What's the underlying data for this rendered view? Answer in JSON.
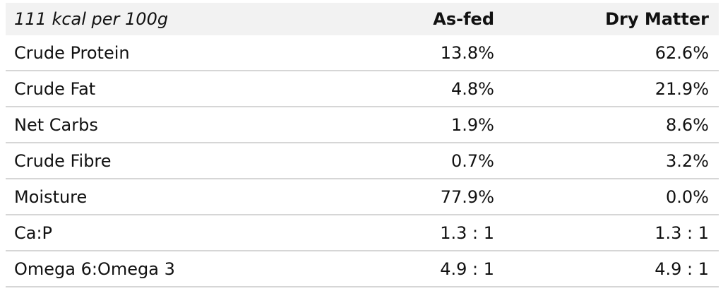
{
  "header": {
    "energy": "111 kcal per 100g",
    "as_fed": "As-fed",
    "dry_matter": "Dry Matter"
  },
  "rows": [
    {
      "label": "Crude Protein",
      "as_fed": "13.8%",
      "dry_matter": "62.6%"
    },
    {
      "label": "Crude Fat",
      "as_fed": "4.8%",
      "dry_matter": "21.9%"
    },
    {
      "label": "Net Carbs",
      "as_fed": "1.9%",
      "dry_matter": "8.6%"
    },
    {
      "label": "Crude Fibre",
      "as_fed": "0.7%",
      "dry_matter": "3.2%"
    },
    {
      "label": "Moisture",
      "as_fed": "77.9%",
      "dry_matter": "0.0%"
    },
    {
      "label": "Ca:P",
      "as_fed": "1.3 : 1",
      "dry_matter": "1.3 : 1"
    },
    {
      "label": "Omega 6:Omega 3",
      "as_fed": "4.9 : 1",
      "dry_matter": "4.9 : 1"
    }
  ]
}
